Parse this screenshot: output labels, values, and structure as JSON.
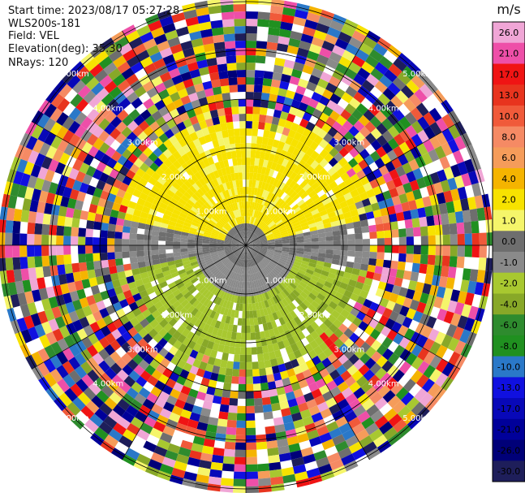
{
  "header": {
    "start_time": "Start time: 2023/08/17 05:27:28",
    "instrument": "WLS200s-181",
    "field": "Field: VEL",
    "elevation": "Elevation(deg): 35.30",
    "nrays": "NRays: 120"
  },
  "colorbar": {
    "unit": "m/s",
    "ticks": [
      "26.0",
      "21.0",
      "17.0",
      "13.0",
      "10.0",
      "8.0",
      "6.0",
      "4.0",
      "2.0",
      "1.0",
      "0.0",
      "-1.0",
      "-2.0",
      "-4.0",
      "-6.0",
      "-8.0",
      "-10.0",
      "-13.0",
      "-17.0",
      "-21.0",
      "-26.0",
      "-30.0"
    ],
    "colors": [
      "#f0a6d6",
      "#ee4fa8",
      "#f01414",
      "#e8341e",
      "#f05a3a",
      "#f58a64",
      "#f59c5a",
      "#f5b400",
      "#f7e200",
      "#f5f56a",
      "#6e6e6e",
      "#8a8a8a",
      "#a8c830",
      "#88a828",
      "#2e8b2e",
      "#209020",
      "#2a78c8",
      "#1010e0",
      "#0808b8",
      "#00009a",
      "#000078",
      "#1e1e5a"
    ]
  },
  "chart_data": {
    "type": "heatmap",
    "projection": "polar-ppi",
    "field": "VEL",
    "units": "m/s",
    "elevation_deg": 35.3,
    "n_rays": 120,
    "range_rings_km": [
      "1.00km",
      "2.00km",
      "3.00km",
      "4.00km",
      "5.00km"
    ],
    "vmin": -30,
    "vmax": 26,
    "regions": [
      {
        "range_km": [
          0,
          0.35
        ],
        "description": "center",
        "value": 0.0
      },
      {
        "range_km": [
          0.35,
          1.0
        ],
        "azimuth": "north half",
        "value": 2.0
      },
      {
        "range_km": [
          0.35,
          1.0
        ],
        "azimuth": "south half",
        "value": -1.0
      },
      {
        "range_km": [
          1.0,
          2.3
        ],
        "azimuth": "north",
        "value": 2.0
      },
      {
        "range_km": [
          1.0,
          2.3
        ],
        "azimuth": "south",
        "value": -2.0
      },
      {
        "range_km": [
          2.3,
          5.5
        ],
        "description": "noise",
        "value": null
      }
    ]
  }
}
